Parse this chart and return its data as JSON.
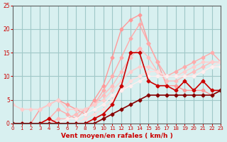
{
  "background_color": "#d8f0f0",
  "grid_color": "#a0c8c8",
  "xlabel": "Vent moyen/en rafales ( km/h )",
  "xlabel_color": "#cc0000",
  "tick_color": "#cc0000",
  "xlim": [
    0,
    23
  ],
  "ylim": [
    0,
    25
  ],
  "yticks": [
    0,
    5,
    10,
    15,
    20,
    25
  ],
  "xticks": [
    0,
    1,
    2,
    3,
    4,
    5,
    6,
    7,
    8,
    9,
    10,
    11,
    12,
    13,
    14,
    15,
    16,
    17,
    18,
    19,
    20,
    21,
    22,
    23
  ],
  "lines": [
    {
      "x": [
        0,
        1,
        2,
        3,
        4,
        5,
        6,
        7,
        8,
        9,
        10,
        11,
        12,
        13,
        14,
        15,
        16,
        17,
        18,
        19,
        20,
        21,
        22,
        23
      ],
      "y": [
        0,
        0,
        0,
        3,
        4,
        5,
        4,
        3,
        2,
        5,
        8,
        14,
        20,
        22,
        23,
        17,
        13,
        8,
        8,
        7,
        7,
        7,
        6,
        7
      ],
      "color": "#ff9999",
      "linewidth": 1.0,
      "marker": "D",
      "markersize": 2.5
    },
    {
      "x": [
        0,
        1,
        2,
        3,
        4,
        5,
        6,
        7,
        8,
        9,
        10,
        11,
        12,
        13,
        14,
        15,
        16,
        17,
        18,
        19,
        20,
        21,
        22,
        23
      ],
      "y": [
        0,
        0,
        0,
        0,
        1,
        3,
        2,
        1,
        3,
        4,
        7,
        10,
        14,
        18,
        21,
        17,
        13,
        10,
        11,
        12,
        13,
        14,
        15,
        13
      ],
      "color": "#ffaaaa",
      "linewidth": 1.0,
      "marker": "D",
      "markersize": 2.5
    },
    {
      "x": [
        0,
        1,
        2,
        3,
        4,
        5,
        6,
        7,
        8,
        9,
        10,
        11,
        12,
        13,
        14,
        15,
        16,
        17,
        18,
        19,
        20,
        21,
        22,
        23
      ],
      "y": [
        0,
        0,
        0,
        0,
        0,
        1,
        1,
        2,
        3,
        4,
        6,
        8,
        11,
        14,
        16,
        14,
        11,
        9,
        9,
        10,
        11,
        12,
        13,
        13
      ],
      "color": "#ffbbbb",
      "linewidth": 1.0,
      "marker": "D",
      "markersize": 2.5
    },
    {
      "x": [
        0,
        1,
        2,
        3,
        4,
        5,
        6,
        7,
        8,
        9,
        10,
        11,
        12,
        13,
        14,
        15,
        16,
        17,
        18,
        19,
        20,
        21,
        22,
        23
      ],
      "y": [
        4,
        3,
        3,
        3,
        4,
        5,
        3,
        3,
        3,
        4,
        5,
        7,
        9,
        11,
        12,
        12,
        11,
        10,
        10,
        11,
        12,
        13,
        13,
        13
      ],
      "color": "#ffcccc",
      "linewidth": 1.0,
      "marker": "D",
      "markersize": 2.5
    },
    {
      "x": [
        0,
        1,
        2,
        3,
        4,
        5,
        6,
        7,
        8,
        9,
        10,
        11,
        12,
        13,
        14,
        15,
        16,
        17,
        18,
        19,
        20,
        21,
        22,
        23
      ],
      "y": [
        0,
        0,
        0,
        0,
        0,
        0,
        0,
        0,
        1,
        2,
        3,
        5,
        7,
        9,
        10,
        11,
        11,
        10,
        10,
        10,
        10,
        11,
        12,
        13
      ],
      "color": "#ffdddd",
      "linewidth": 1.0,
      "marker": "D",
      "markersize": 2.5
    },
    {
      "x": [
        0,
        1,
        2,
        3,
        4,
        5,
        6,
        7,
        8,
        9,
        10,
        11,
        12,
        13,
        14,
        15,
        16,
        17,
        18,
        19,
        20,
        21,
        22,
        23
      ],
      "y": [
        0,
        0,
        0,
        0,
        0,
        0,
        1,
        1,
        2,
        3,
        4,
        6,
        7,
        8,
        9,
        10,
        10,
        10,
        10,
        10,
        10,
        11,
        12,
        12
      ],
      "color": "#ffeeee",
      "linewidth": 1.0,
      "marker": "D",
      "markersize": 2.5
    },
    {
      "x": [
        0,
        1,
        2,
        3,
        4,
        5,
        6,
        7,
        8,
        9,
        10,
        11,
        12,
        13,
        14,
        15,
        16,
        17,
        18,
        19,
        20,
        21,
        22,
        23
      ],
      "y": [
        0,
        0,
        0,
        0,
        1,
        0,
        0,
        0,
        0,
        1,
        2,
        4,
        8,
        15,
        15,
        9,
        8,
        8,
        7,
        9,
        7,
        9,
        7,
        7
      ],
      "color": "#cc0000",
      "linewidth": 1.2,
      "marker": "D",
      "markersize": 2.5
    },
    {
      "x": [
        0,
        1,
        2,
        3,
        4,
        5,
        6,
        7,
        8,
        9,
        10,
        11,
        12,
        13,
        14,
        15,
        16,
        17,
        18,
        19,
        20,
        21,
        22,
        23
      ],
      "y": [
        0,
        0,
        0,
        0,
        0,
        0,
        0,
        0,
        0,
        0,
        1,
        2,
        3,
        4,
        5,
        6,
        6,
        6,
        6,
        6,
        6,
        6,
        6,
        7
      ],
      "color": "#880000",
      "linewidth": 1.2,
      "marker": "D",
      "markersize": 2.5
    }
  ],
  "wind_arrows": {
    "x": [
      2,
      3,
      4,
      5,
      6,
      7,
      8,
      9,
      10,
      11,
      12,
      13,
      14,
      15,
      16,
      17,
      18,
      19,
      20,
      21,
      22,
      23
    ],
    "color": "#cc0000"
  }
}
